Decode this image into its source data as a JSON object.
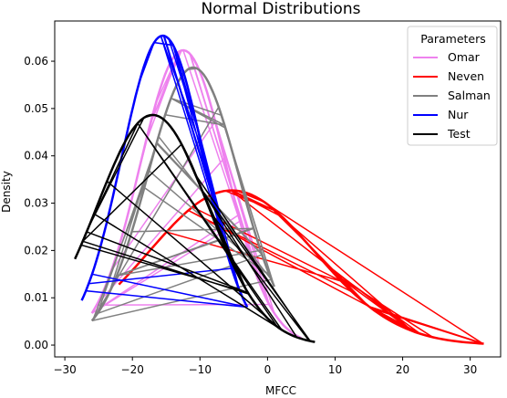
{
  "chart_data": {
    "type": "line",
    "title": "Normal Distributions",
    "xlabel": "MFCC",
    "ylabel": "Density",
    "xlim": [
      -31.5,
      34.5
    ],
    "ylim": [
      -0.0025,
      0.0685
    ],
    "xticks": [
      -30,
      -20,
      -10,
      0,
      10,
      20,
      30
    ],
    "yticks": [
      0.0,
      0.01,
      0.02,
      0.03,
      0.04,
      0.05,
      0.06
    ],
    "ytick_labels": [
      "0.00",
      "0.01",
      "0.02",
      "0.03",
      "0.04",
      "0.05",
      "0.06"
    ],
    "grid": false,
    "legend": {
      "title": "Parameters",
      "placement": "top-right"
    },
    "series": [
      {
        "name": "Omar",
        "color": "#ee82ee",
        "mean": -12.5,
        "sd": 6.4,
        "range": [
          -26,
          5
        ]
      },
      {
        "name": "Neven",
        "color": "#ff0000",
        "mean": -5.3,
        "sd": 12.2,
        "range": [
          -22,
          32
        ]
      },
      {
        "name": "Salman",
        "color": "#808080",
        "mean": -11,
        "sd": 6.8,
        "range": [
          -26,
          1
        ]
      },
      {
        "name": "Nur",
        "color": "#0000ff",
        "mean": -15.5,
        "sd": 6.1,
        "range": [
          -27.5,
          -3
        ]
      },
      {
        "name": "Test",
        "color": "#000000",
        "mean": -17,
        "sd": 8.2,
        "range": [
          -28.5,
          7
        ]
      }
    ]
  }
}
